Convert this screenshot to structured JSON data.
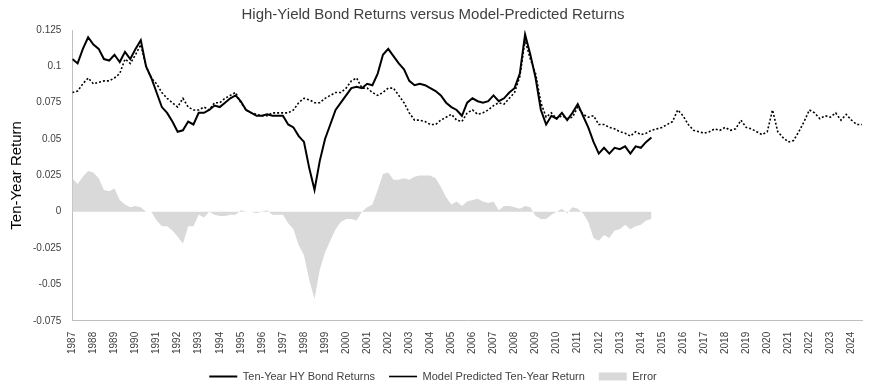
{
  "chart_data": {
    "type": "line",
    "title": "High-Yield Bond Returns versus Model-Predicted Returns",
    "y_label": "Ten-Year Return",
    "legend": "bottom",
    "grid": false,
    "xlim": [
      1987,
      2024.5
    ],
    "xticks": [
      1987,
      1988,
      1989,
      1990,
      1991,
      1992,
      1993,
      1994,
      1995,
      1996,
      1997,
      1998,
      1999,
      2000,
      2001,
      2002,
      2003,
      2004,
      2005,
      2006,
      2007,
      2008,
      2009,
      2010,
      2011,
      2012,
      2013,
      2014,
      2015,
      2016,
      2017,
      2018,
      2019,
      2020,
      2021,
      2022,
      2023,
      2024
    ],
    "ylim": [
      -0.075,
      0.125
    ],
    "yticks": [
      -0.075,
      -0.05,
      -0.025,
      0,
      0.025,
      0.05,
      0.075,
      0.1,
      0.125
    ],
    "x": [
      1987,
      1987.25,
      1987.5,
      1987.75,
      1988,
      1988.25,
      1988.5,
      1988.75,
      1989,
      1989.25,
      1989.5,
      1989.75,
      1990,
      1990.25,
      1990.5,
      1990.75,
      1991,
      1991.25,
      1991.5,
      1991.75,
      1992,
      1992.25,
      1992.5,
      1992.75,
      1993,
      1993.25,
      1993.5,
      1993.75,
      1994,
      1994.25,
      1994.5,
      1994.75,
      1995,
      1995.25,
      1995.5,
      1995.75,
      1996,
      1996.25,
      1996.5,
      1996.75,
      1997,
      1997.25,
      1997.5,
      1997.75,
      1998,
      1998.25,
      1998.5,
      1998.75,
      1999,
      1999.25,
      1999.5,
      1999.75,
      2000,
      2000.25,
      2000.5,
      2000.75,
      2001,
      2001.25,
      2001.5,
      2001.75,
      2002,
      2002.25,
      2002.5,
      2002.75,
      2003,
      2003.25,
      2003.5,
      2003.75,
      2004,
      2004.25,
      2004.5,
      2004.75,
      2005,
      2005.25,
      2005.5,
      2005.75,
      2006,
      2006.25,
      2006.5,
      2006.75,
      2007,
      2007.25,
      2007.5,
      2007.75,
      2008,
      2008.25,
      2008.5,
      2008.75,
      2009,
      2009.25,
      2009.5,
      2009.75,
      2010,
      2010.25,
      2010.5,
      2010.75,
      2011,
      2011.25,
      2011.5,
      2011.75,
      2012,
      2012.25,
      2012.5,
      2012.75,
      2013,
      2013.25,
      2013.5,
      2013.75,
      2014,
      2014.25,
      2014.5,
      2014.75,
      2015,
      2015.25,
      2015.5,
      2015.75,
      2016,
      2016.25,
      2016.5,
      2016.75,
      2017,
      2017.25,
      2017.5,
      2017.75,
      2018,
      2018.25,
      2018.5,
      2018.75,
      2019,
      2019.25,
      2019.5,
      2019.75,
      2020,
      2020.25,
      2020.5,
      2020.75,
      2021,
      2021.25,
      2021.5,
      2021.75,
      2022,
      2022.25,
      2022.5,
      2022.75,
      2023,
      2023.25,
      2023.5,
      2023.75,
      2024,
      2024.25,
      2024.5
    ],
    "series": [
      {
        "name": "Error",
        "type": "area",
        "color": "#d9d9d9",
        "values": [
          0.023,
          0.019,
          0.024,
          0.028,
          0.027,
          0.023,
          0.015,
          0.014,
          0.016,
          0.008,
          0.005,
          0.003,
          0.004,
          0.003,
          0,
          0,
          -0.006,
          -0.01,
          -0.01,
          -0.013,
          -0.017,
          -0.022,
          -0.01,
          -0.01,
          -0.002,
          -0.004,
          0,
          -0.002,
          -0.003,
          -0.003,
          -0.002,
          -0.002,
          0.001,
          0,
          0,
          -0.001,
          0,
          0.001,
          -0.002,
          -0.002,
          -0.002,
          -0.008,
          -0.012,
          -0.023,
          -0.03,
          -0.047,
          -0.06,
          -0.04,
          -0.028,
          -0.02,
          -0.012,
          -0.007,
          -0.005,
          -0.005,
          -0.006,
          0,
          0.003,
          0.005,
          0.015,
          0.026,
          0.027,
          0.022,
          0.022,
          0.023,
          0.022,
          0.024,
          0.025,
          0.025,
          0.025,
          0.023,
          0.017,
          0.01,
          0.005,
          0.007,
          0.004,
          0.007,
          0.008,
          0.009,
          0.007,
          0.006,
          0.007,
          0.001,
          0.004,
          0.004,
          0.003,
          0.002,
          0.004,
          0.003,
          -0.003,
          -0.005,
          -0.005,
          -0.002,
          0,
          0.002,
          -0.001,
          0.003,
          0.002,
          -0.001,
          -0.007,
          -0.018,
          -0.02,
          -0.016,
          -0.018,
          -0.013,
          -0.012,
          -0.009,
          -0.012,
          -0.01,
          -0.009,
          -0.006,
          -0.005,
          null,
          null,
          null,
          null,
          null,
          null,
          null,
          null,
          null,
          null,
          null,
          null,
          null,
          null,
          null,
          null,
          null,
          null,
          null,
          null,
          null,
          null,
          null,
          null,
          null,
          null,
          null,
          null,
          null,
          null,
          null,
          null,
          null,
          null,
          null,
          null,
          null,
          null,
          null,
          null
        ]
      },
      {
        "name": "Ten-Year HY Bond Returns",
        "type": "line",
        "line_style": "solid",
        "color": "#000000",
        "values": [
          0.105,
          0.102,
          0.112,
          0.12,
          0.115,
          0.112,
          0.105,
          0.104,
          0.108,
          0.103,
          0.11,
          0.105,
          0.112,
          0.118,
          0.1,
          0.092,
          0.082,
          0.072,
          0.068,
          0.062,
          0.055,
          0.056,
          0.062,
          0.06,
          0.068,
          0.068,
          0.07,
          0.073,
          0.072,
          0.075,
          0.078,
          0.08,
          0.076,
          0.07,
          0.068,
          0.066,
          0.066,
          0.067,
          0.066,
          0.066,
          0.066,
          0.06,
          0.058,
          0.052,
          0.048,
          0.03,
          0.015,
          0.035,
          0.05,
          0.06,
          0.07,
          0.075,
          0.08,
          0.085,
          0.086,
          0.085,
          0.088,
          0.087,
          0.095,
          0.108,
          0.112,
          0.107,
          0.102,
          0.098,
          0.09,
          0.087,
          0.088,
          0.087,
          0.085,
          0.083,
          0.08,
          0.075,
          0.072,
          0.07,
          0.066,
          0.075,
          0.078,
          0.076,
          0.075,
          0.076,
          0.08,
          0.076,
          0.078,
          0.082,
          0.085,
          0.095,
          0.122,
          0.108,
          0.092,
          0.07,
          0.06,
          0.066,
          0.064,
          0.068,
          0.063,
          0.068,
          0.074,
          0.066,
          0.058,
          0.048,
          0.04,
          0.044,
          0.04,
          0.044,
          0.043,
          0.045,
          0.04,
          0.045,
          0.044,
          0.048,
          0.051,
          null,
          null,
          null,
          null,
          null,
          null,
          null,
          null,
          null,
          null,
          null,
          null,
          null,
          null,
          null,
          null,
          null,
          null,
          null,
          null,
          null,
          null,
          null,
          null,
          null,
          null,
          null,
          null,
          null,
          null,
          null,
          null,
          null,
          null,
          null,
          null,
          null,
          null,
          null,
          null
        ]
      },
      {
        "name": "Model Predicted Ten-Year Return",
        "type": "line",
        "line_style": "dotted",
        "color": "#000000",
        "values": [
          0.082,
          0.083,
          0.088,
          0.092,
          0.088,
          0.089,
          0.09,
          0.09,
          0.092,
          0.095,
          0.105,
          0.102,
          0.108,
          0.115,
          0.1,
          0.092,
          0.088,
          0.082,
          0.078,
          0.075,
          0.072,
          0.078,
          0.072,
          0.07,
          0.07,
          0.072,
          0.07,
          0.075,
          0.075,
          0.078,
          0.08,
          0.082,
          0.075,
          0.07,
          0.068,
          0.067,
          0.066,
          0.066,
          0.068,
          0.068,
          0.068,
          0.068,
          0.07,
          0.075,
          0.078,
          0.077,
          0.075,
          0.075,
          0.078,
          0.08,
          0.082,
          0.082,
          0.085,
          0.09,
          0.092,
          0.085,
          0.085,
          0.082,
          0.08,
          0.082,
          0.085,
          0.085,
          0.08,
          0.075,
          0.068,
          0.063,
          0.063,
          0.062,
          0.06,
          0.06,
          0.063,
          0.065,
          0.067,
          0.063,
          0.062,
          0.068,
          0.07,
          0.067,
          0.068,
          0.07,
          0.073,
          0.075,
          0.074,
          0.078,
          0.082,
          0.093,
          0.118,
          0.105,
          0.095,
          0.075,
          0.065,
          0.068,
          0.064,
          0.066,
          0.064,
          0.065,
          0.072,
          0.067,
          0.065,
          0.066,
          0.06,
          0.06,
          0.058,
          0.057,
          0.055,
          0.054,
          0.052,
          0.055,
          0.053,
          0.054,
          0.056,
          0.057,
          0.058,
          0.06,
          0.062,
          0.07,
          0.066,
          0.06,
          0.056,
          0.055,
          0.054,
          0.055,
          0.057,
          0.056,
          0.058,
          0.056,
          0.057,
          0.063,
          0.058,
          0.057,
          0.055,
          0.053,
          0.055,
          0.07,
          0.055,
          0.051,
          0.048,
          0.049,
          0.055,
          0.062,
          0.07,
          0.068,
          0.064,
          0.066,
          0.065,
          0.068,
          0.063,
          0.067,
          0.063,
          0.06,
          0.06
        ]
      }
    ]
  }
}
